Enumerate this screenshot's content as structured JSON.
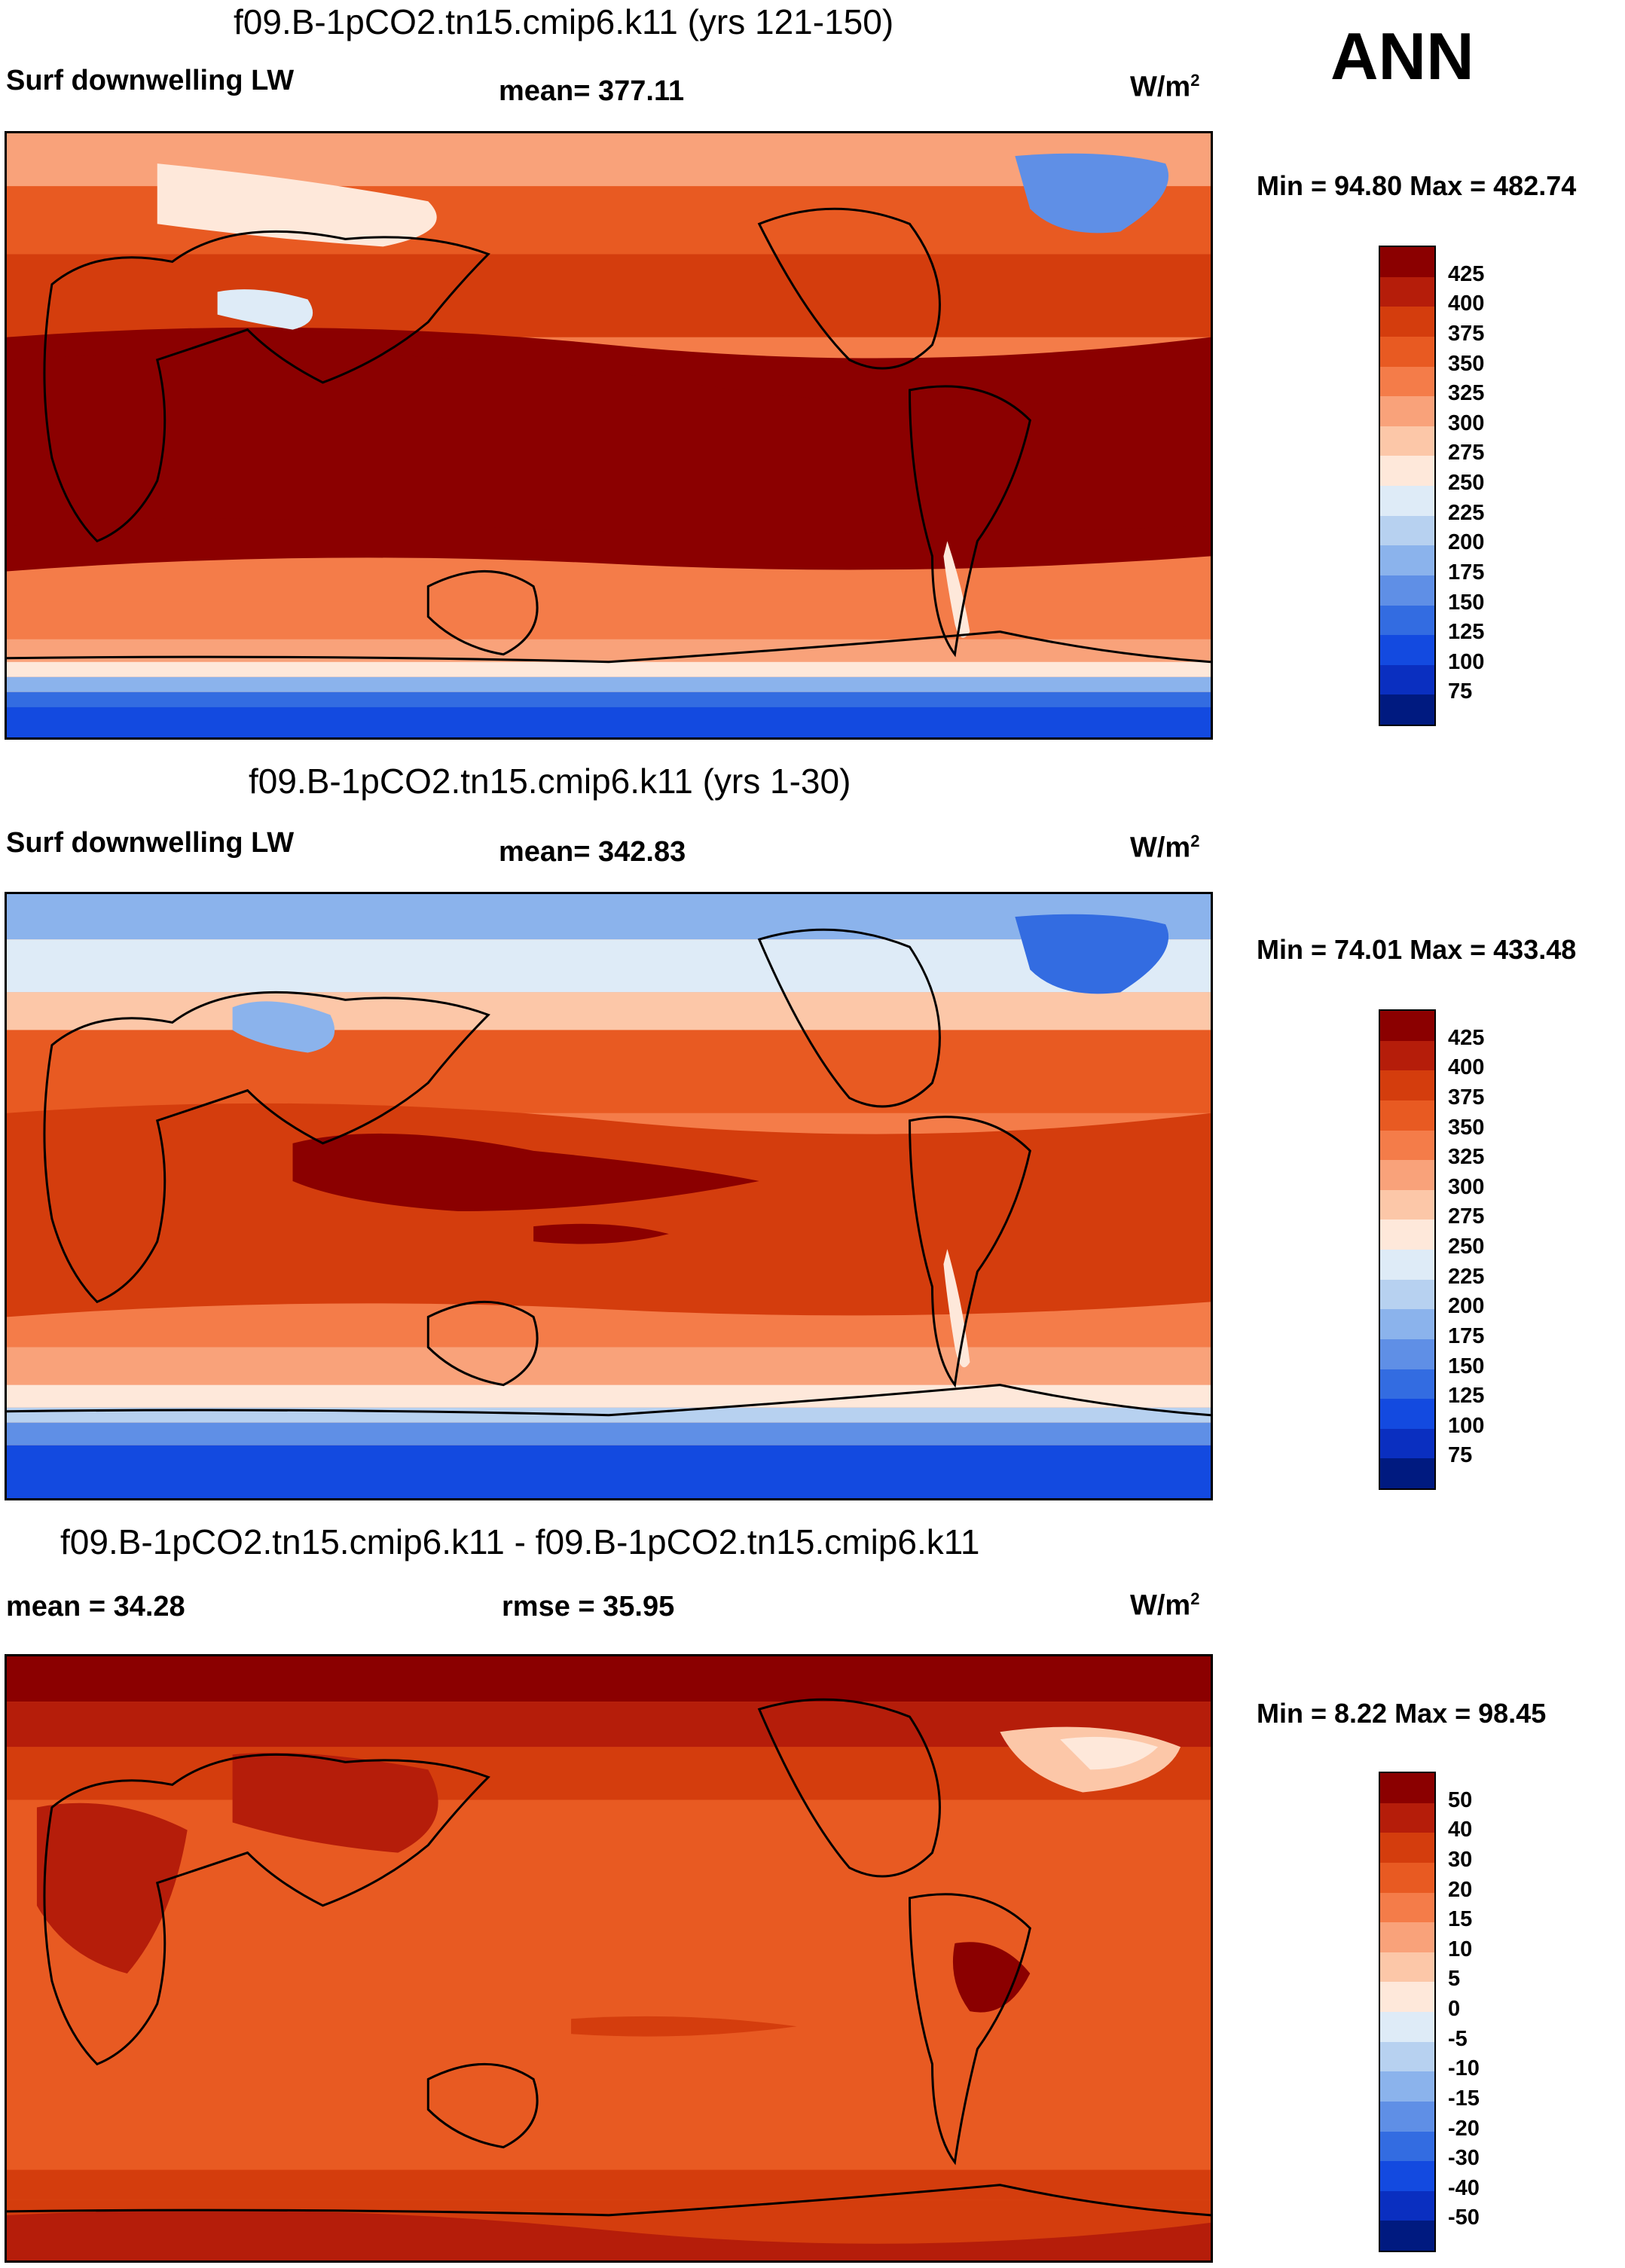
{
  "ann_label": "ANN",
  "units_base": "W/m",
  "units_exp": "2",
  "panels": [
    {
      "title": "f09.B-1pCO2.tn15.cmip6.k11 (yrs 121-150)",
      "left_label": "Surf downwelling LW",
      "center_label": "mean= 377.11",
      "min_max": "Min =  94.80 Max = 482.74",
      "scale": [
        "425",
        "400",
        "375",
        "350",
        "325",
        "300",
        "275",
        "250",
        "225",
        "200",
        "175",
        "150",
        "125",
        "100",
        "75"
      ],
      "colors": [
        "#8b0000",
        "#b51d0a",
        "#d43d0d",
        "#e85a22",
        "#f47c49",
        "#f9a27a",
        "#fcc7a8",
        "#fee8da",
        "#deebf7",
        "#b7d1f0",
        "#8bb3ec",
        "#5f8fe6",
        "#336ce1",
        "#134ae0",
        "#0a2fc0",
        "#001a80"
      ]
    },
    {
      "title": "f09.B-1pCO2.tn15.cmip6.k11 (yrs 1-30)",
      "left_label": "Surf downwelling LW",
      "center_label": "mean= 342.83",
      "min_max": "Min = 74.01 Max = 433.48",
      "scale": [
        "425",
        "400",
        "375",
        "350",
        "325",
        "300",
        "275",
        "250",
        "225",
        "200",
        "175",
        "150",
        "125",
        "100",
        "75"
      ],
      "colors": [
        "#8b0000",
        "#b51d0a",
        "#d43d0d",
        "#e85a22",
        "#f47c49",
        "#f9a27a",
        "#fcc7a8",
        "#fee8da",
        "#deebf7",
        "#b7d1f0",
        "#8bb3ec",
        "#5f8fe6",
        "#336ce1",
        "#134ae0",
        "#0a2fc0",
        "#001a80"
      ]
    },
    {
      "title": "f09.B-1pCO2.tn15.cmip6.k11 - f09.B-1pCO2.tn15.cmip6.k11",
      "left_label": "mean =  34.28",
      "center_label": "rmse =  35.95",
      "min_max": "Min =   8.22 Max =  98.45",
      "scale": [
        "50",
        "40",
        "30",
        "20",
        "15",
        "10",
        "5",
        "0",
        "-5",
        "-10",
        "-15",
        "-20",
        "-30",
        "-40",
        "-50"
      ],
      "colors": [
        "#8b0000",
        "#b51d0a",
        "#d43d0d",
        "#e85a22",
        "#f47c49",
        "#f9a27a",
        "#fcc7a8",
        "#fee8da",
        "#deebf7",
        "#b7d1f0",
        "#8bb3ec",
        "#5f8fe6",
        "#336ce1",
        "#134ae0",
        "#0a2fc0",
        "#001a80"
      ]
    }
  ]
}
